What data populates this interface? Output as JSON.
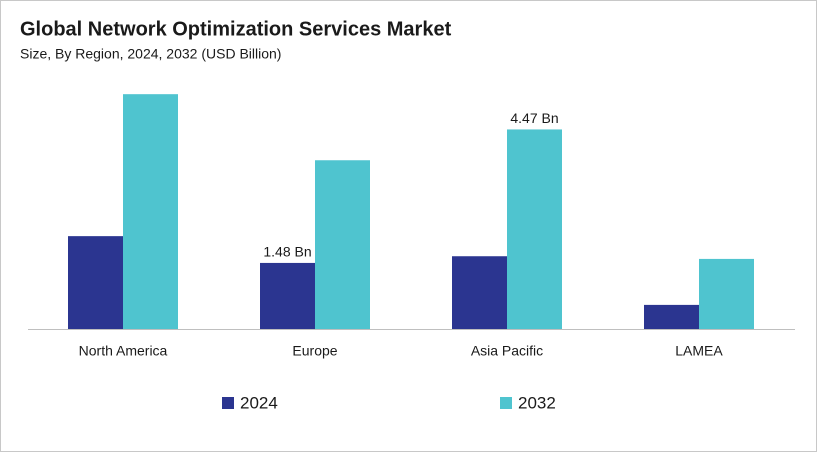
{
  "chart_data": {
    "type": "bar",
    "title": "Global Network Optimization Services Market",
    "subtitle": "Size, By Region, 2024, 2032 (USD Billion)",
    "categories": [
      "North America",
      "Europe",
      "Asia Pacific",
      "LAMEA"
    ],
    "series": [
      {
        "name": "2024",
        "color": "#2b3590",
        "values": [
          2.08,
          1.48,
          1.63,
          0.54
        ],
        "value_labels": [
          null,
          "1.48 Bn",
          null,
          null
        ]
      },
      {
        "name": "2032",
        "color": "#4fc4cf",
        "values": [
          5.26,
          3.78,
          4.47,
          1.57
        ],
        "value_labels": [
          null,
          null,
          "4.47 Bn",
          null
        ]
      }
    ],
    "ylim": [
      0,
      5.6
    ]
  }
}
